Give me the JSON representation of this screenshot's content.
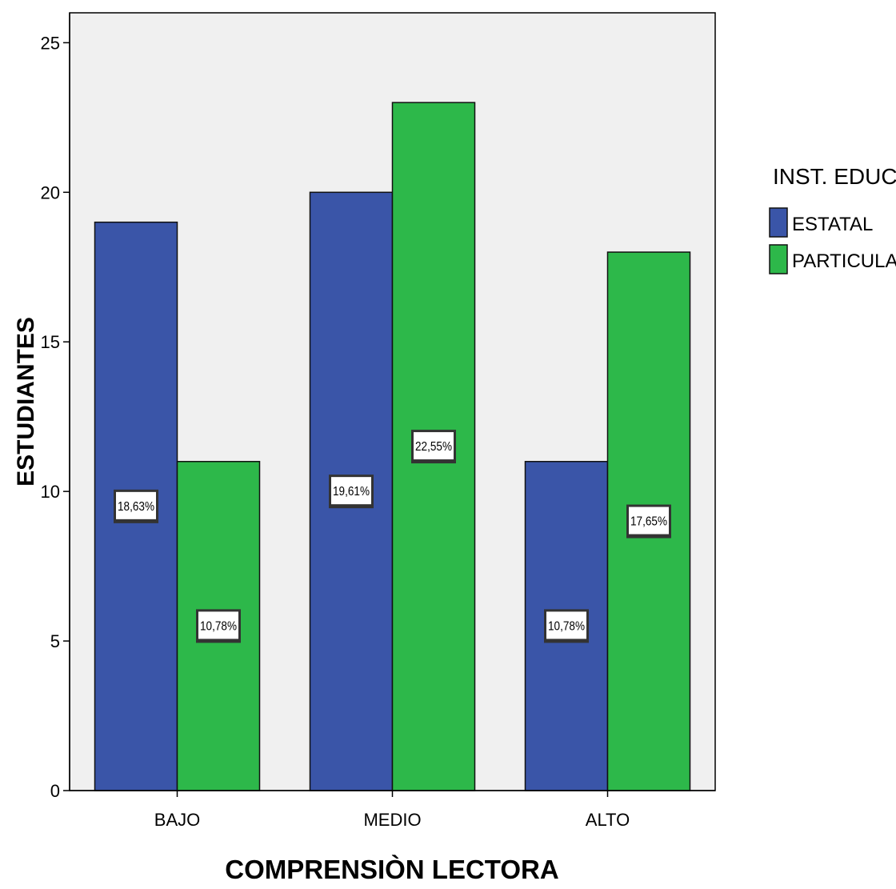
{
  "chart_data": {
    "type": "bar",
    "title": "",
    "xlabel": "COMPRENSIÒN LECTORA",
    "ylabel": "ESTUDIANTES",
    "categories": [
      "BAJO",
      "MEDIO",
      "ALTO"
    ],
    "ylim": [
      0,
      26
    ],
    "yticks": [
      0,
      5,
      10,
      15,
      20,
      25
    ],
    "grid": false,
    "legend": {
      "title": "INST. EDUC",
      "placement": "right"
    },
    "series": [
      {
        "name": "ESTATAL",
        "color": "#3a55a8",
        "values": [
          19,
          20,
          11
        ],
        "labels": [
          "18,63%",
          "19,61%",
          "10,78%"
        ]
      },
      {
        "name": "PARTICULAR",
        "color": "#2db84a",
        "values": [
          11,
          23,
          18
        ],
        "labels": [
          "10,78%",
          "22,55%",
          "17,65%"
        ]
      }
    ]
  }
}
